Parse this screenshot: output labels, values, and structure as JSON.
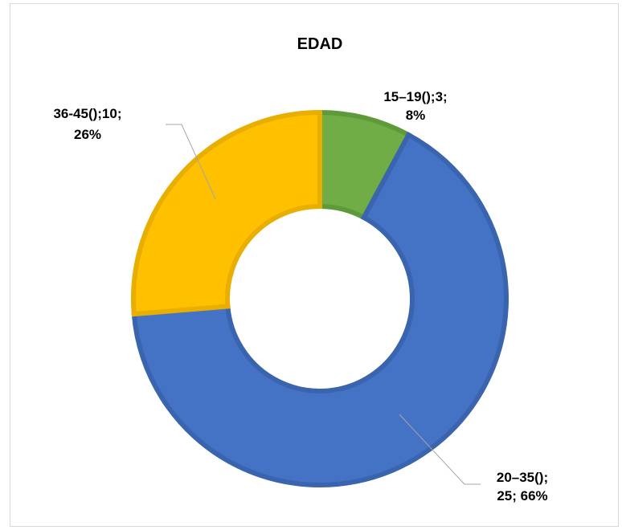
{
  "chart_data": {
    "type": "pie",
    "variant": "doughnut",
    "title": "EDAD",
    "categories": [
      "15–19()",
      "20–35()",
      "36-45()"
    ],
    "values": [
      3,
      25,
      10
    ],
    "percentages": [
      8,
      66,
      26
    ],
    "colors": [
      "#70AD47",
      "#4472C4",
      "#FFC000"
    ],
    "border_colors": [
      "#5E9A3A",
      "#3A64AE",
      "#E8AE00"
    ],
    "labels": [
      [
        "15–19();3;",
        "8%"
      ],
      [
        "20–35();",
        "25; 66%"
      ],
      [
        "36-45();10;",
        "26%"
      ]
    ],
    "legend": "none"
  }
}
